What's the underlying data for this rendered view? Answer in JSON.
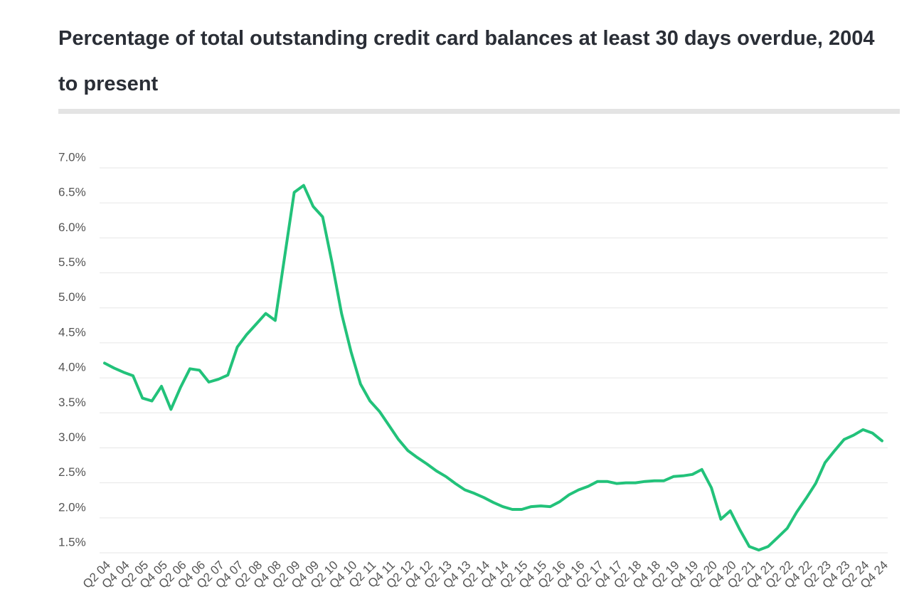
{
  "chart_data": {
    "type": "line",
    "title": "Percentage of total outstanding credit card balances at least 30 days overdue, 2004 to present",
    "categories": [
      "Q2 04",
      null,
      "Q4 04",
      null,
      "Q2 05",
      null,
      "Q4 05",
      null,
      "Q2 06",
      null,
      "Q4 06",
      null,
      "Q2 07",
      null,
      "Q4 07",
      null,
      "Q2 08",
      null,
      "Q4 08",
      null,
      "Q2 09",
      null,
      "Q4 09",
      null,
      "Q2 10",
      null,
      "Q4 10",
      null,
      "Q2 11",
      null,
      "Q4 11",
      null,
      "Q2 12",
      null,
      "Q4 12",
      null,
      "Q2 13",
      null,
      "Q4 13",
      null,
      "Q2 14",
      null,
      "Q4 14",
      null,
      "Q2 15",
      null,
      "Q4 15",
      null,
      "Q2 16",
      null,
      "Q4 16",
      null,
      "Q2 17",
      null,
      "Q4 17",
      null,
      "Q2 18",
      null,
      "Q4 18",
      null,
      "Q2 19",
      null,
      "Q4 19",
      null,
      "Q2 20",
      null,
      "Q4 20",
      null,
      "Q2 21",
      null,
      "Q4 21",
      null,
      "Q2 22",
      null,
      "Q4 22",
      null,
      "Q2 23",
      null,
      "Q4 23",
      null,
      "Q2 24",
      null,
      "Q4 24"
    ],
    "series": [
      {
        "color": "#22c27a",
        "values": [
          4.21,
          4.14,
          4.08,
          4.03,
          3.71,
          3.67,
          3.88,
          3.55,
          3.86,
          4.13,
          4.11,
          3.94,
          3.98,
          4.04,
          4.44,
          4.62,
          4.77,
          4.92,
          4.82,
          5.74,
          6.65,
          6.75,
          6.45,
          6.3,
          5.64,
          4.92,
          4.37,
          3.91,
          3.67,
          3.52,
          3.32,
          3.12,
          2.96,
          2.86,
          2.77,
          2.67,
          2.59,
          2.49,
          2.4,
          2.35,
          2.29,
          2.22,
          2.16,
          2.12,
          2.12,
          2.16,
          2.17,
          2.16,
          2.23,
          2.33,
          2.4,
          2.45,
          2.52,
          2.52,
          2.49,
          2.5,
          2.5,
          2.52,
          2.53,
          2.53,
          2.59,
          2.6,
          2.62,
          2.69,
          2.43,
          1.98,
          2.1,
          1.83,
          1.59,
          1.54,
          1.59,
          1.72,
          1.85,
          2.08,
          2.28,
          2.49,
          2.79,
          2.96,
          3.12,
          3.18,
          3.26,
          3.21,
          3.1
        ]
      }
    ],
    "ylim": [
      1.5,
      7.0
    ],
    "yticks": [
      {
        "value": 1.5,
        "label": "1.5%"
      },
      {
        "value": 2.0,
        "label": "2.0%"
      },
      {
        "value": 2.5,
        "label": "2.5%"
      },
      {
        "value": 3.0,
        "label": "3.0%"
      },
      {
        "value": 3.5,
        "label": "3.5%"
      },
      {
        "value": 4.0,
        "label": "4.0%"
      },
      {
        "value": 4.5,
        "label": "4.5%"
      },
      {
        "value": 5.0,
        "label": "5.0%"
      },
      {
        "value": 5.5,
        "label": "5.5%"
      },
      {
        "value": 6.0,
        "label": "6.0%"
      },
      {
        "value": 6.5,
        "label": "6.5%"
      },
      {
        "value": 7.0,
        "label": "7.0%"
      }
    ],
    "grid": true
  }
}
